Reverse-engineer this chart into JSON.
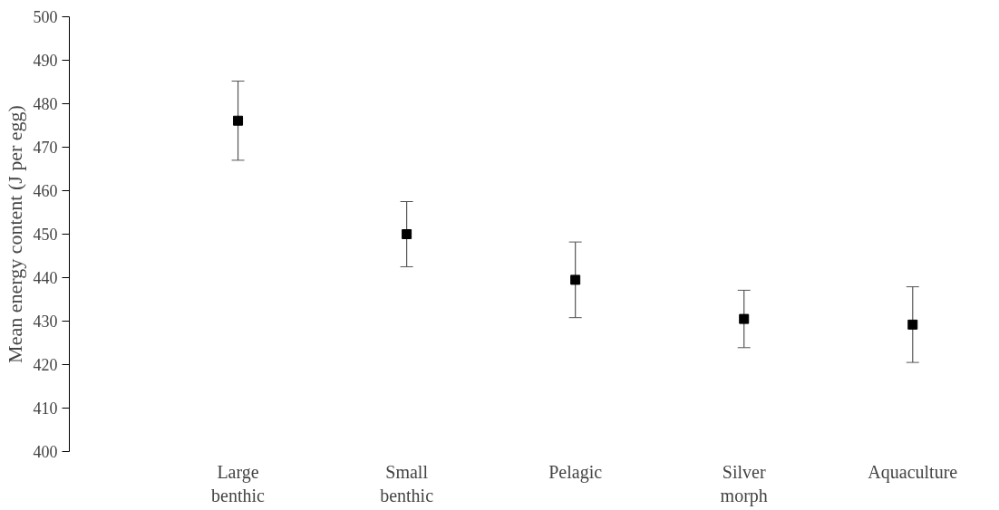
{
  "chart_data": {
    "type": "scatter",
    "ylabel": "Mean energy content (J per egg)",
    "categories": [
      "Large benthic",
      "Small benthic",
      "Pelagic",
      "Silver morph",
      "Aquaculture"
    ],
    "values": [
      476.1,
      450.0,
      439.5,
      430.5,
      429.2
    ],
    "errors": [
      9.1,
      7.5,
      8.7,
      6.6,
      8.7
    ],
    "color": "#000000",
    "marker": "square",
    "ylim": [
      400,
      500
    ],
    "yticks": [
      400,
      410,
      420,
      430,
      440,
      450,
      460,
      470,
      480,
      490,
      500
    ],
    "grid": false
  }
}
